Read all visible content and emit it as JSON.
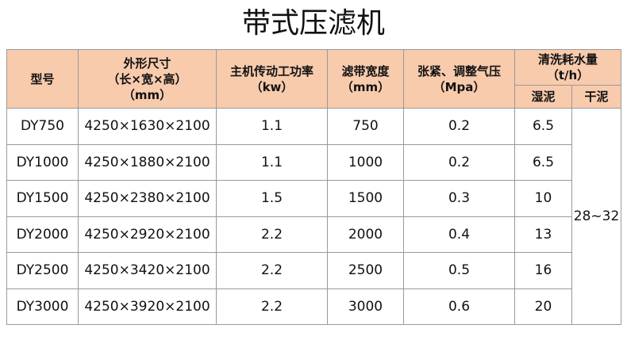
{
  "title": "带式压滤机",
  "header": {
    "model": "型号",
    "size": [
      "外形尺寸",
      "（长×宽×高）",
      "（mm）"
    ],
    "power": [
      "主机传动工功率",
      "（kw）"
    ],
    "width": [
      "滤带宽度",
      "（mm）"
    ],
    "pressure": [
      "张紧、调整气压",
      "（Mpa）"
    ],
    "water": [
      "清洗耗水量",
      "（t/h）"
    ],
    "wet": "湿泥",
    "dry": "干泥"
  },
  "rows": [
    [
      "DY750",
      "4250×1630×2100",
      "1.1",
      "750",
      "0.2",
      "6.5"
    ],
    [
      "DY1000",
      "4250×1880×2100",
      "1.1",
      "1000",
      "0.2",
      "6.5"
    ],
    [
      "DY1500",
      "4250×2380×2100",
      "1.5",
      "1500",
      "0.3",
      "10"
    ],
    [
      "DY2000",
      "4250×2920×2100",
      "2.2",
      "2000",
      "0.4",
      "13"
    ],
    [
      "DY2500",
      "4250×3420×2100",
      "2.2",
      "2500",
      "0.5",
      "16"
    ],
    [
      "DY3000",
      "4250×3920×2100",
      "2.2",
      "3000",
      "0.6",
      "20"
    ]
  ],
  "dry_value": "28~32"
}
